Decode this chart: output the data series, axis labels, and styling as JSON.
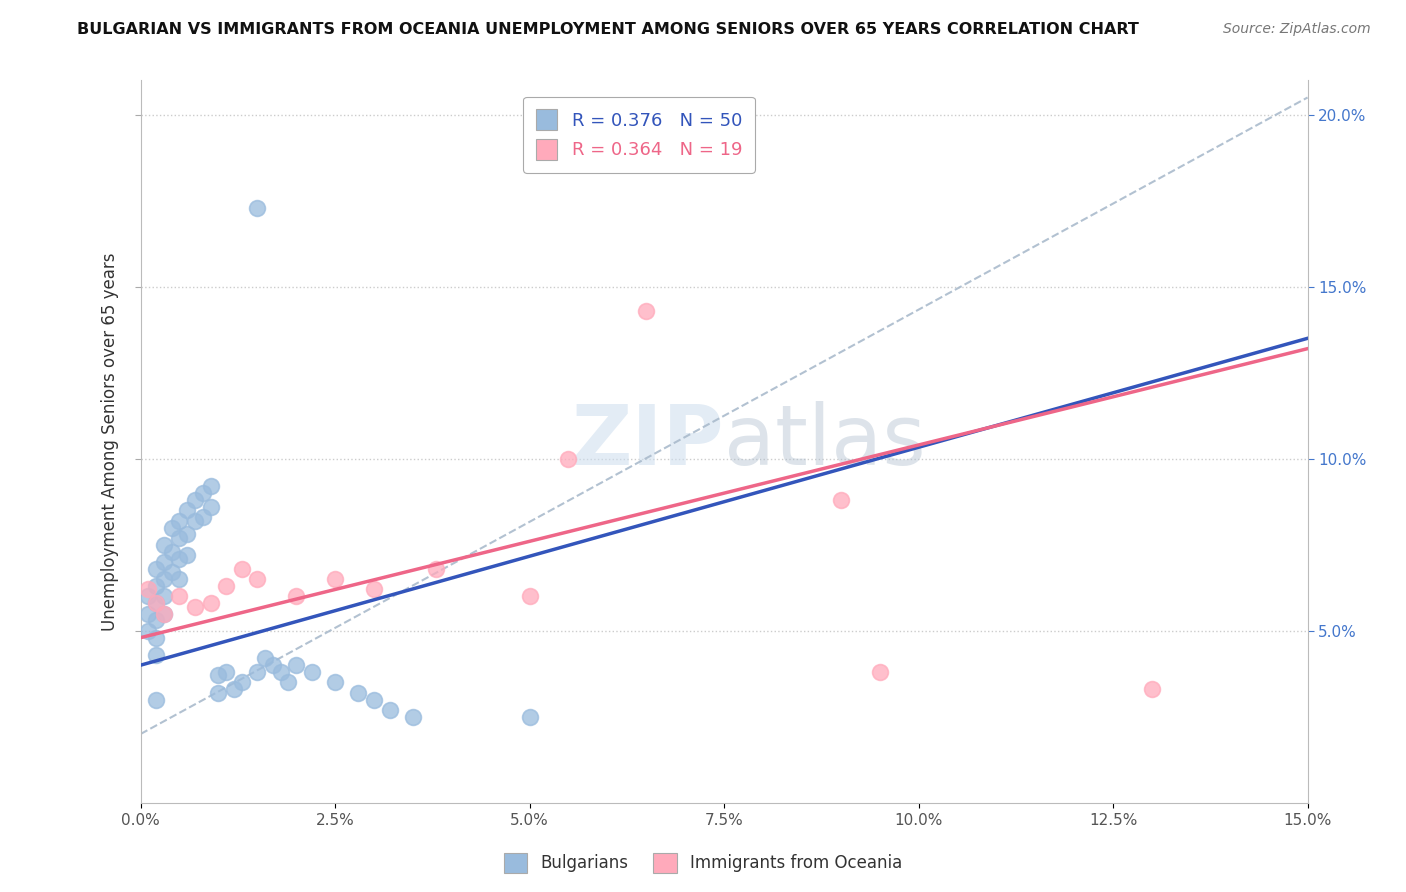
{
  "title": "BULGARIAN VS IMMIGRANTS FROM OCEANIA UNEMPLOYMENT AMONG SENIORS OVER 65 YEARS CORRELATION CHART",
  "source": "Source: ZipAtlas.com",
  "ylabel_left": "Unemployment Among Seniors over 65 years",
  "xlim": [
    0.0,
    0.15
  ],
  "ylim": [
    0.0,
    0.21
  ],
  "xticks": [
    0.0,
    0.025,
    0.05,
    0.075,
    0.1,
    0.125,
    0.15
  ],
  "xtick_labels": [
    "0.0%",
    "2.5%",
    "5.0%",
    "7.5%",
    "10.0%",
    "12.5%",
    "15.0%"
  ],
  "yticks_right": [
    0.05,
    0.1,
    0.15,
    0.2
  ],
  "ytick_labels_right": [
    "5.0%",
    "10.0%",
    "15.0%",
    "20.0%"
  ],
  "legend1_label": "Bulgarians",
  "legend2_label": "Immigrants from Oceania",
  "legend1_R": "0.376",
  "legend1_N": "50",
  "legend2_R": "0.364",
  "legend2_N": "19",
  "blue_scatter_color": "#99BBDD",
  "pink_scatter_color": "#FFAABB",
  "blue_line_color": "#3355BB",
  "pink_line_color": "#EE6688",
  "diag_line_color": "#AABBCC",
  "watermark_color": "#CCDDEE",
  "bulgarians_x": [
    0.001,
    0.001,
    0.001,
    0.002,
    0.002,
    0.002,
    0.002,
    0.002,
    0.002,
    0.003,
    0.003,
    0.003,
    0.003,
    0.003,
    0.004,
    0.004,
    0.004,
    0.005,
    0.005,
    0.005,
    0.005,
    0.006,
    0.006,
    0.006,
    0.007,
    0.007,
    0.008,
    0.008,
    0.009,
    0.009,
    0.01,
    0.01,
    0.011,
    0.012,
    0.013,
    0.015,
    0.016,
    0.017,
    0.018,
    0.019,
    0.02,
    0.022,
    0.025,
    0.028,
    0.03,
    0.032,
    0.035,
    0.05,
    0.015,
    0.002
  ],
  "bulgarians_y": [
    0.06,
    0.055,
    0.05,
    0.068,
    0.063,
    0.058,
    0.053,
    0.048,
    0.043,
    0.075,
    0.07,
    0.065,
    0.06,
    0.055,
    0.08,
    0.073,
    0.067,
    0.082,
    0.077,
    0.071,
    0.065,
    0.085,
    0.078,
    0.072,
    0.088,
    0.082,
    0.09,
    0.083,
    0.092,
    0.086,
    0.037,
    0.032,
    0.038,
    0.033,
    0.035,
    0.038,
    0.042,
    0.04,
    0.038,
    0.035,
    0.04,
    0.038,
    0.035,
    0.032,
    0.03,
    0.027,
    0.025,
    0.025,
    0.173,
    0.03
  ],
  "oceania_x": [
    0.001,
    0.002,
    0.003,
    0.005,
    0.007,
    0.009,
    0.011,
    0.013,
    0.015,
    0.02,
    0.025,
    0.03,
    0.038,
    0.05,
    0.055,
    0.065,
    0.09,
    0.095,
    0.13
  ],
  "oceania_y": [
    0.062,
    0.058,
    0.055,
    0.06,
    0.057,
    0.058,
    0.063,
    0.068,
    0.065,
    0.06,
    0.065,
    0.062,
    0.068,
    0.06,
    0.1,
    0.143,
    0.088,
    0.038,
    0.033
  ]
}
